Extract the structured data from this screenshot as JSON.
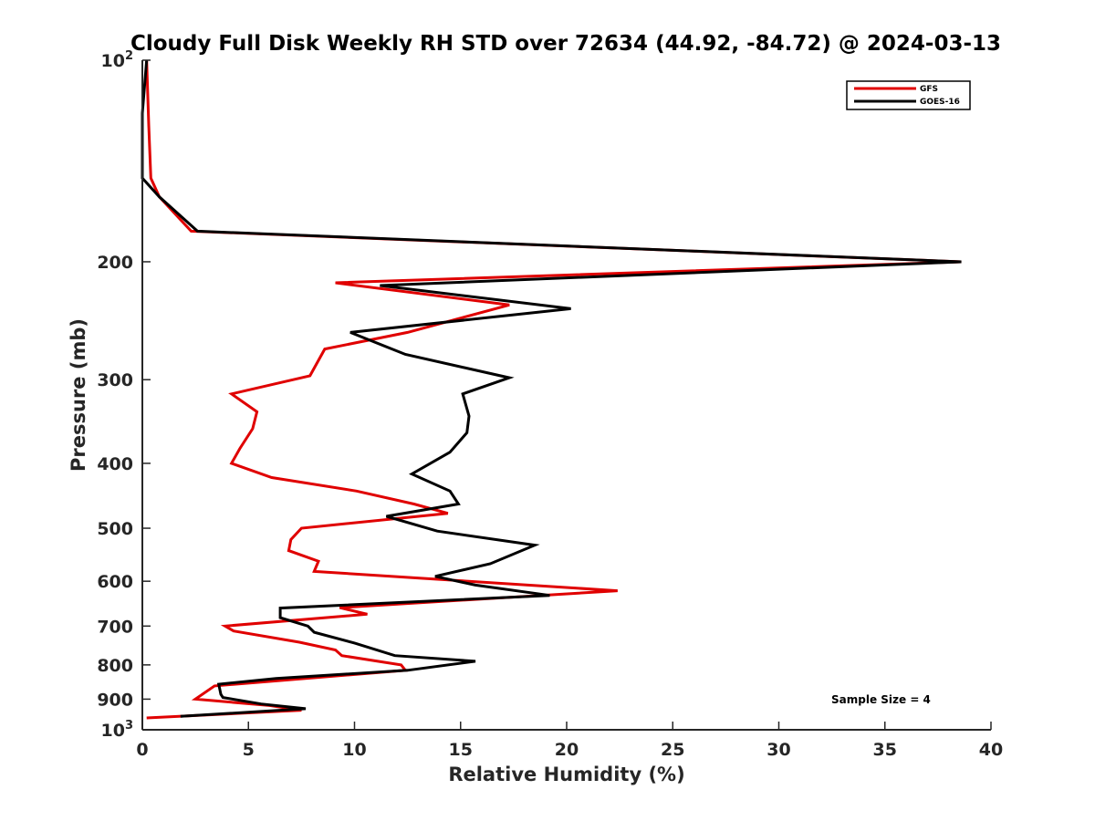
{
  "chart_data": {
    "type": "line",
    "title": "Cloudy Full Disk Weekly RH STD over 72634 (44.92, -84.72) @ 2024-03-13",
    "xlabel": "Relative Humidity (%)",
    "ylabel": "Pressure (mb)",
    "xlim": [
      0,
      40
    ],
    "ylim": [
      100,
      1000
    ],
    "yscale": "log",
    "y_reversed": true,
    "grid": false,
    "legend_position": "top-right",
    "annotation": "Sample Size = 4",
    "x_ticks": [
      0,
      5,
      10,
      15,
      20,
      25,
      30,
      35,
      40
    ],
    "x_tick_labels": [
      "0",
      "5",
      "10",
      "15",
      "20",
      "25",
      "30",
      "35",
      "40"
    ],
    "y_ticks": [
      {
        "value": 100,
        "label": "10",
        "sup": "2"
      },
      {
        "value": 200,
        "label": "200",
        "sup": ""
      },
      {
        "value": 300,
        "label": "300",
        "sup": ""
      },
      {
        "value": 400,
        "label": "400",
        "sup": ""
      },
      {
        "value": 500,
        "label": "500",
        "sup": ""
      },
      {
        "value": 600,
        "label": "600",
        "sup": ""
      },
      {
        "value": 700,
        "label": "700",
        "sup": ""
      },
      {
        "value": 800,
        "label": "800",
        "sup": ""
      },
      {
        "value": 900,
        "label": "900",
        "sup": ""
      },
      {
        "value": 1000,
        "label": "10",
        "sup": "3"
      }
    ],
    "series": [
      {
        "name": "GFS",
        "color": "#e00000",
        "points": [
          [
            0.2,
            100
          ],
          [
            0.3,
            125
          ],
          [
            0.4,
            150
          ],
          [
            0.8,
            160
          ],
          [
            2.3,
            180
          ],
          [
            38.6,
            200
          ],
          [
            9.1,
            215
          ],
          [
            17.3,
            232
          ],
          [
            12.5,
            255
          ],
          [
            8.6,
            270
          ],
          [
            7.9,
            296
          ],
          [
            4.2,
            315
          ],
          [
            5.4,
            335
          ],
          [
            5.2,
            355
          ],
          [
            4.6,
            380
          ],
          [
            4.2,
            400
          ],
          [
            6.1,
            420
          ],
          [
            10.1,
            440
          ],
          [
            12.8,
            460
          ],
          [
            14.4,
            475
          ],
          [
            7.5,
            500
          ],
          [
            7.0,
            520
          ],
          [
            6.9,
            540
          ],
          [
            8.3,
            560
          ],
          [
            8.1,
            580
          ],
          [
            22.4,
            620
          ],
          [
            9.3,
            657
          ],
          [
            10.6,
            672
          ],
          [
            3.9,
            700
          ],
          [
            4.3,
            712
          ],
          [
            7.4,
            740
          ],
          [
            9.1,
            760
          ],
          [
            9.4,
            775
          ],
          [
            12.2,
            800
          ],
          [
            12.4,
            815
          ],
          [
            3.4,
            860
          ],
          [
            2.5,
            900
          ],
          [
            6.0,
            920
          ],
          [
            7.5,
            935
          ],
          [
            0.2,
            960
          ]
        ]
      },
      {
        "name": "GOES-16",
        "color": "#000000",
        "points": [
          [
            0.2,
            100
          ],
          [
            0.0,
            120
          ],
          [
            0.0,
            150
          ],
          [
            0.8,
            160
          ],
          [
            2.6,
            180
          ],
          [
            38.6,
            200
          ],
          [
            11.2,
            217
          ],
          [
            20.2,
            235
          ],
          [
            9.8,
            255
          ],
          [
            12.4,
            275
          ],
          [
            17.3,
            298
          ],
          [
            15.1,
            315
          ],
          [
            15.4,
            340
          ],
          [
            15.3,
            360
          ],
          [
            14.5,
            385
          ],
          [
            12.7,
            415
          ],
          [
            14.5,
            440
          ],
          [
            14.9,
            460
          ],
          [
            11.5,
            480
          ],
          [
            13.9,
            505
          ],
          [
            18.5,
            530
          ],
          [
            16.4,
            565
          ],
          [
            13.8,
            590
          ],
          [
            15.7,
            608
          ],
          [
            19.2,
            630
          ],
          [
            6.5,
            658
          ],
          [
            6.5,
            680
          ],
          [
            7.8,
            700
          ],
          [
            8.1,
            715
          ],
          [
            10.0,
            742
          ],
          [
            11.9,
            775
          ],
          [
            15.7,
            790
          ],
          [
            12.5,
            815
          ],
          [
            6.3,
            838
          ],
          [
            3.6,
            855
          ],
          [
            3.7,
            885
          ],
          [
            3.8,
            895
          ],
          [
            5.6,
            915
          ],
          [
            7.7,
            930
          ],
          [
            1.8,
            955
          ]
        ]
      }
    ]
  }
}
